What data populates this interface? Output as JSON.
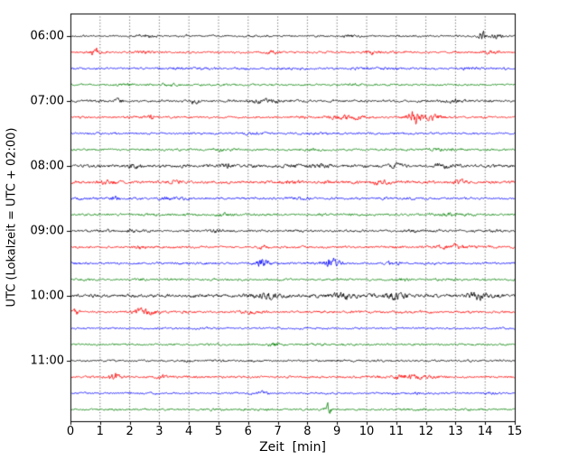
{
  "chart_data": {
    "type": "line",
    "subtype": "helicorder-seismogram",
    "title": "",
    "xlabel": "Zeit  [min]",
    "ylabel": "UTC (Lokalzeit = UTC + 02:00)",
    "xlim": [
      0,
      15
    ],
    "x_ticks": [
      "0",
      "1",
      "2",
      "3",
      "4",
      "5",
      "6",
      "7",
      "8",
      "9",
      "10",
      "11",
      "12",
      "13",
      "14",
      "15"
    ],
    "hour_labels": [
      "06:00",
      "07:00",
      "08:00",
      "09:00",
      "10:00",
      "11:00"
    ],
    "grid": "vertical-dotted-per-minute",
    "legend": "none",
    "trace_colors_cycle": [
      "#000000",
      "#ff0000",
      "#0000ff",
      "#008000"
    ],
    "minutes_per_row": 15,
    "noise_seed": 42,
    "rows": [
      {
        "utc": "06:00",
        "color": "#000000",
        "base_amp": 1.0,
        "events": [
          {
            "m": 2.5,
            "a": 2,
            "w": 0.2
          },
          {
            "m": 9.4,
            "a": 2,
            "w": 0.2
          },
          {
            "m": 13.9,
            "a": 7,
            "w": 0.1
          },
          {
            "m": 14.4,
            "a": 3,
            "w": 0.15
          }
        ]
      },
      {
        "utc": "06:15",
        "color": "#ff0000",
        "base_amp": 1.1,
        "events": [
          {
            "m": 0.85,
            "a": 6,
            "w": 0.12
          },
          {
            "m": 2.5,
            "a": 2,
            "w": 0.2
          },
          {
            "m": 6.8,
            "a": 2.5,
            "w": 0.2
          },
          {
            "m": 10.2,
            "a": 2.5,
            "w": 0.2
          },
          {
            "m": 14.2,
            "a": 2,
            "w": 0.2
          }
        ]
      },
      {
        "utc": "06:30",
        "color": "#0000ff",
        "base_amp": 1.1,
        "events": [
          {
            "m": 13.5,
            "a": 1.5,
            "w": 0.25
          }
        ]
      },
      {
        "utc": "06:45",
        "color": "#008000",
        "base_amp": 1.0,
        "events": [
          {
            "m": 3.2,
            "a": 1.5,
            "w": 0.2
          }
        ]
      },
      {
        "utc": "07:00",
        "color": "#000000",
        "base_amp": 1.2,
        "events": [
          {
            "m": 1.6,
            "a": 3.5,
            "w": 0.1
          },
          {
            "m": 4.2,
            "a": 3,
            "w": 0.12
          },
          {
            "m": 6.6,
            "a": 3,
            "w": 0.3
          },
          {
            "m": 13.0,
            "a": 2.5,
            "w": 0.25
          }
        ]
      },
      {
        "utc": "07:15",
        "color": "#ff0000",
        "base_amp": 1.2,
        "events": [
          {
            "m": 2.7,
            "a": 3,
            "w": 0.12
          },
          {
            "m": 9.3,
            "a": 3,
            "w": 0.4
          },
          {
            "m": 11.6,
            "a": 11,
            "w": 0.18
          },
          {
            "m": 12.2,
            "a": 4,
            "w": 0.3
          }
        ]
      },
      {
        "utc": "07:30",
        "color": "#0000ff",
        "base_amp": 1.1,
        "events": []
      },
      {
        "utc": "07:45",
        "color": "#008000",
        "base_amp": 1.1,
        "events": [
          {
            "m": 12.4,
            "a": 2,
            "w": 0.2
          }
        ]
      },
      {
        "utc": "08:00",
        "color": "#000000",
        "base_amp": 1.5,
        "events": [
          {
            "m": 2.2,
            "a": 2.5,
            "w": 0.2
          },
          {
            "m": 5.3,
            "a": 3,
            "w": 0.2
          },
          {
            "m": 8.4,
            "a": 2.5,
            "w": 0.2
          },
          {
            "m": 11.0,
            "a": 3,
            "w": 0.2
          },
          {
            "m": 12.6,
            "a": 2.5,
            "w": 0.2
          }
        ]
      },
      {
        "utc": "08:15",
        "color": "#ff0000",
        "base_amp": 1.5,
        "events": [
          {
            "m": 1.2,
            "a": 2.5,
            "w": 0.2
          },
          {
            "m": 3.5,
            "a": 2.5,
            "w": 0.2
          },
          {
            "m": 7.5,
            "a": 2,
            "w": 0.2
          },
          {
            "m": 10.5,
            "a": 2.5,
            "w": 0.2
          },
          {
            "m": 13.2,
            "a": 2,
            "w": 0.2
          }
        ]
      },
      {
        "utc": "08:30",
        "color": "#0000ff",
        "base_amp": 1.2,
        "events": [
          {
            "m": 1.5,
            "a": 3,
            "w": 0.12
          },
          {
            "m": 3.2,
            "a": 3,
            "w": 0.12
          },
          {
            "m": 7.8,
            "a": 2,
            "w": 0.2
          }
        ]
      },
      {
        "utc": "08:45",
        "color": "#008000",
        "base_amp": 1.2,
        "events": [
          {
            "m": 5.2,
            "a": 2,
            "w": 0.2
          },
          {
            "m": 12.7,
            "a": 2,
            "w": 0.2
          }
        ]
      },
      {
        "utc": "09:00",
        "color": "#000000",
        "base_amp": 1.2,
        "events": [
          {
            "m": 2.0,
            "a": 3,
            "w": 0.1
          },
          {
            "m": 5.0,
            "a": 2.5,
            "w": 0.15
          },
          {
            "m": 11.5,
            "a": 2,
            "w": 0.2
          }
        ]
      },
      {
        "utc": "09:15",
        "color": "#ff0000",
        "base_amp": 1.2,
        "events": [
          {
            "m": 2.4,
            "a": 3,
            "w": 0.12
          },
          {
            "m": 6.5,
            "a": 3,
            "w": 0.12
          },
          {
            "m": 12.9,
            "a": 3,
            "w": 0.5
          }
        ]
      },
      {
        "utc": "09:30",
        "color": "#0000ff",
        "base_amp": 1.1,
        "events": [
          {
            "m": 6.5,
            "a": 8,
            "w": 0.15
          },
          {
            "m": 8.8,
            "a": 6,
            "w": 0.2
          },
          {
            "m": 10.9,
            "a": 2.5,
            "w": 0.2
          }
        ]
      },
      {
        "utc": "09:45",
        "color": "#008000",
        "base_amp": 1.1,
        "events": [
          {
            "m": 11.2,
            "a": 2,
            "w": 0.2
          }
        ]
      },
      {
        "utc": "10:00",
        "color": "#000000",
        "base_amp": 1.7,
        "events": [
          {
            "m": 6.7,
            "a": 4,
            "w": 0.3
          },
          {
            "m": 9.2,
            "a": 4,
            "w": 0.3
          },
          {
            "m": 10.9,
            "a": 5,
            "w": 0.25
          },
          {
            "m": 13.8,
            "a": 5,
            "w": 0.3
          }
        ]
      },
      {
        "utc": "10:15",
        "color": "#ff0000",
        "base_amp": 1.2,
        "events": [
          {
            "m": 0.15,
            "a": 6,
            "w": 0.08
          },
          {
            "m": 2.5,
            "a": 5,
            "w": 0.25
          },
          {
            "m": 6.0,
            "a": 2,
            "w": 0.2
          }
        ]
      },
      {
        "utc": "10:30",
        "color": "#0000ff",
        "base_amp": 1.0,
        "events": []
      },
      {
        "utc": "10:45",
        "color": "#008000",
        "base_amp": 1.1,
        "events": [
          {
            "m": 6.9,
            "a": 3,
            "w": 0.15
          }
        ]
      },
      {
        "utc": "11:00",
        "color": "#000000",
        "base_amp": 1.1,
        "events": []
      },
      {
        "utc": "11:15",
        "color": "#ff0000",
        "base_amp": 1.2,
        "events": [
          {
            "m": 1.5,
            "a": 6,
            "w": 0.1
          },
          {
            "m": 3.1,
            "a": 3,
            "w": 0.12
          },
          {
            "m": 11.5,
            "a": 2.5,
            "w": 0.6
          }
        ]
      },
      {
        "utc": "11:30",
        "color": "#0000ff",
        "base_amp": 1.0,
        "events": [
          {
            "m": 6.5,
            "a": 3,
            "w": 0.12
          }
        ]
      },
      {
        "utc": "11:45",
        "color": "#008000",
        "base_amp": 1.1,
        "events": [
          {
            "m": 8.7,
            "a": 8,
            "w": 0.08
          }
        ]
      }
    ]
  }
}
